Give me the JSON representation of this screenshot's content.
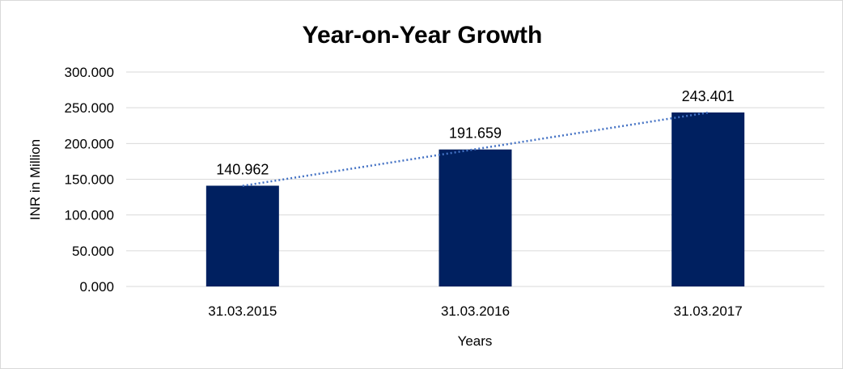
{
  "chart_data": {
    "type": "bar",
    "title": "Year-on-Year Growth",
    "xlabel": "Years",
    "ylabel": "INR in Million",
    "categories": [
      "31.03.2015",
      "31.03.2016",
      "31.03.2017"
    ],
    "values": [
      140.962,
      191.659,
      243.401
    ],
    "data_labels": [
      "140.962",
      "191.659",
      "243.401"
    ],
    "ylim": [
      0,
      300
    ],
    "yticks": [
      0,
      50,
      100,
      150,
      200,
      250,
      300
    ],
    "ytick_labels": [
      "0.000",
      "50.000",
      "100.000",
      "150.000",
      "200.000",
      "250.000",
      "300.000"
    ],
    "grid": true,
    "legend": "none",
    "trendline": {
      "type": "linear",
      "style": "dotted"
    },
    "colors": {
      "bar": "#002060",
      "trendline": "#4472c4",
      "grid": "#d9d9d9"
    }
  }
}
